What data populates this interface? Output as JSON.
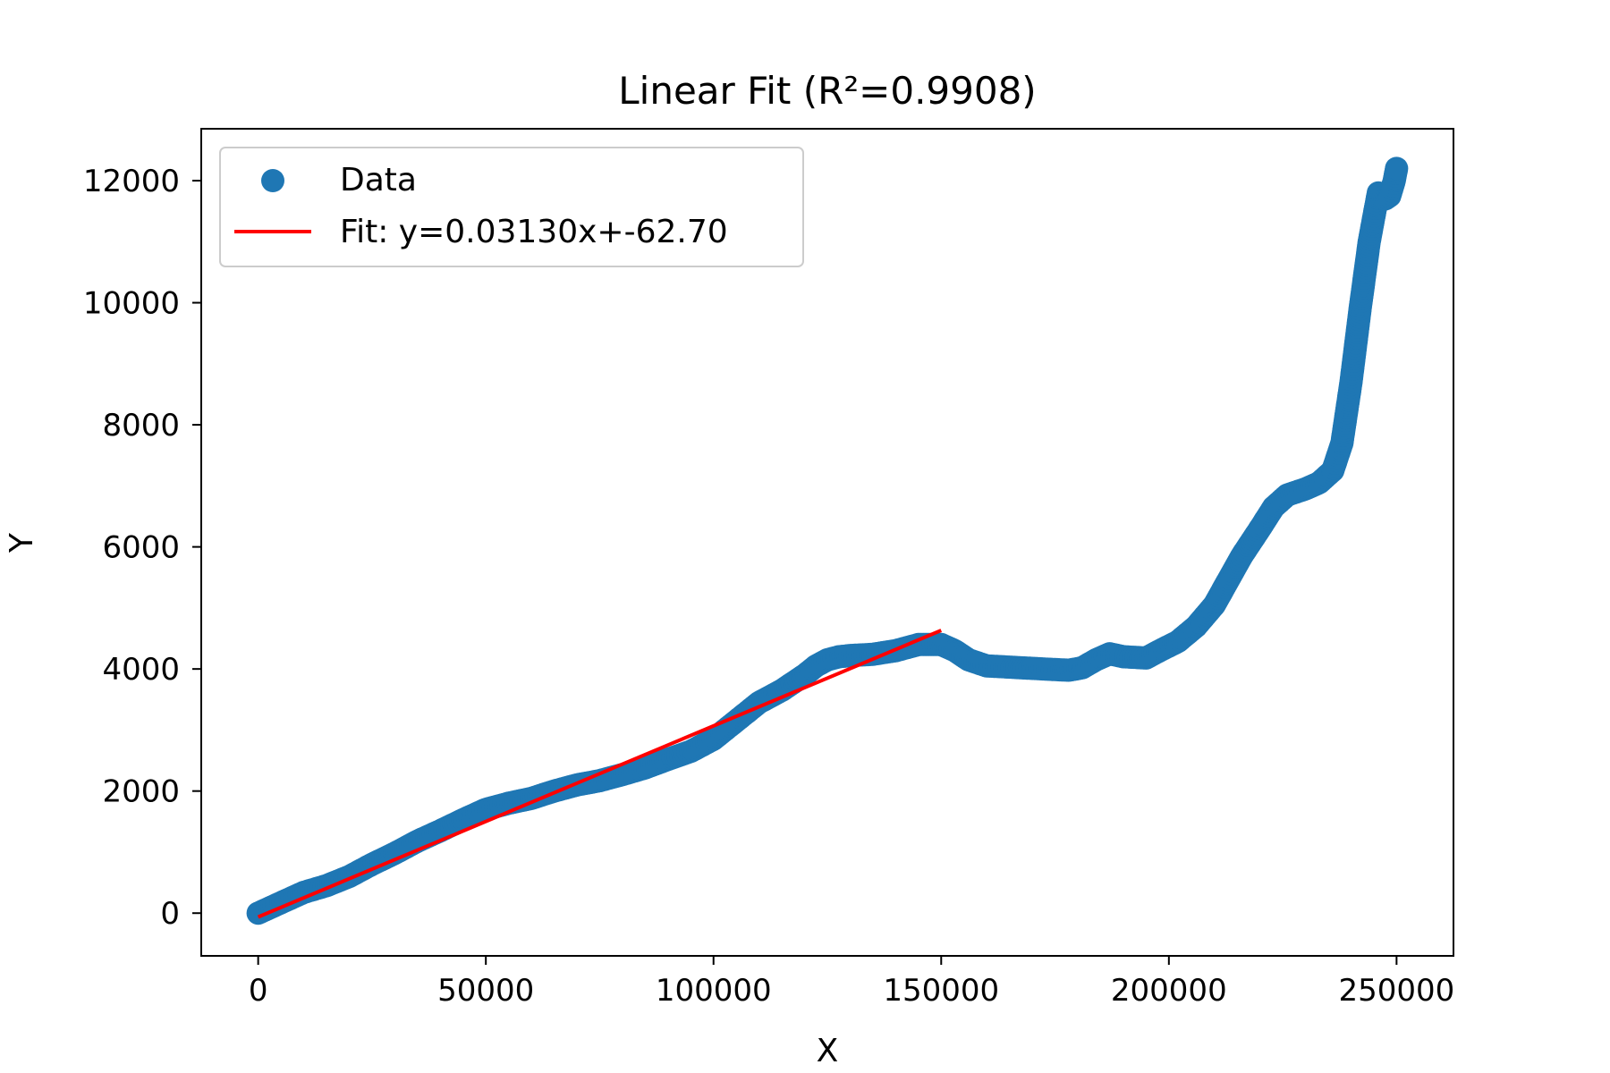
{
  "chart_data": {
    "type": "scatter",
    "title": "Linear Fit (R²=0.9908)",
    "xlabel": "X",
    "ylabel": "Y",
    "xlim": [
      -12500,
      262500
    ],
    "ylim": [
      -700,
      12850
    ],
    "xticks": [
      0,
      50000,
      100000,
      150000,
      200000,
      250000
    ],
    "yticks": [
      0,
      2000,
      4000,
      6000,
      8000,
      10000,
      12000
    ],
    "grid": false,
    "legend_position": "top-left",
    "series": [
      {
        "name": "Data",
        "kind": "scatter",
        "color": "#1f77b4",
        "x": [
          0,
          5000,
          10000,
          15000,
          20000,
          25000,
          30000,
          35000,
          40000,
          45000,
          50000,
          55000,
          60000,
          65000,
          70000,
          75000,
          80000,
          85000,
          90000,
          95000,
          100000,
          105000,
          110000,
          115000,
          120000,
          122500,
          125000,
          127500,
          130000,
          135000,
          140000,
          145000,
          150000,
          153000,
          156000,
          160000,
          165000,
          170000,
          175000,
          178000,
          181000,
          184000,
          187000,
          190000,
          195000,
          198000,
          202000,
          206000,
          210000,
          213000,
          216000,
          220000,
          223000,
          226000,
          230000,
          233000,
          236000,
          238000,
          240000,
          242000,
          244000,
          246000,
          247500,
          248500,
          249500,
          250000
        ],
        "y": [
          0,
          170,
          340,
          450,
          600,
          800,
          980,
          1180,
          1350,
          1530,
          1700,
          1800,
          1880,
          2000,
          2100,
          2170,
          2270,
          2380,
          2520,
          2650,
          2850,
          3150,
          3450,
          3650,
          3900,
          4050,
          4150,
          4200,
          4220,
          4240,
          4300,
          4400,
          4400,
          4300,
          4150,
          4050,
          4030,
          4010,
          3990,
          3980,
          4020,
          4150,
          4250,
          4200,
          4180,
          4300,
          4450,
          4700,
          5050,
          5450,
          5850,
          6300,
          6650,
          6850,
          6950,
          7050,
          7250,
          7700,
          8700,
          9900,
          11000,
          11800,
          11700,
          11750,
          12000,
          12200
        ]
      },
      {
        "name": "Fit: y=0.03130x+-62.70",
        "kind": "line",
        "color": "#ff0000",
        "x": [
          0,
          150000
        ],
        "y": [
          -62.7,
          4632.3
        ]
      }
    ]
  }
}
